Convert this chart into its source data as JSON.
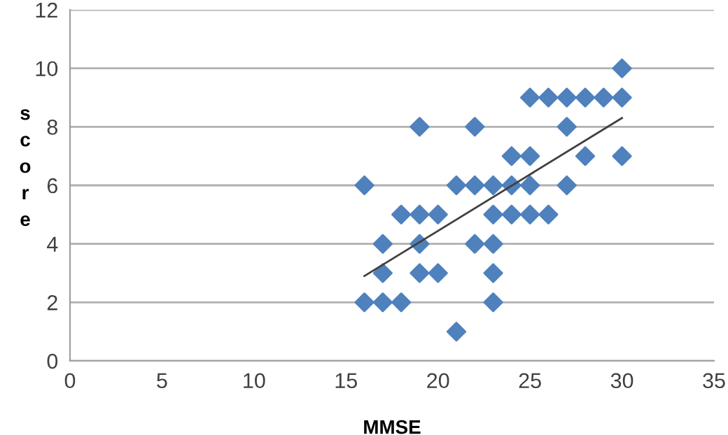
{
  "chart_data": {
    "type": "scatter",
    "xlabel": "MMSE",
    "ylabel": "score",
    "xlim": [
      0,
      35
    ],
    "xticks": [
      0,
      5,
      10,
      15,
      20,
      25,
      30,
      35
    ],
    "ylim": [
      0,
      12
    ],
    "yticks": [
      0,
      2,
      4,
      6,
      8,
      10,
      12
    ],
    "grid": "y",
    "legend": false,
    "series": [
      {
        "marker": "diamond",
        "color": "#4f81bd",
        "x": [
          30,
          25,
          26,
          27,
          28,
          29,
          30,
          19,
          22,
          27,
          24,
          25,
          28,
          30,
          16,
          21,
          22,
          23,
          24,
          25,
          27,
          18,
          19,
          20,
          23,
          24,
          25,
          26,
          17,
          19,
          22,
          23,
          17,
          19,
          20,
          23,
          16,
          17,
          18,
          23,
          21
        ],
        "values": [
          10,
          9,
          9,
          9,
          9,
          9,
          9,
          8,
          8,
          8,
          7,
          7,
          7,
          7,
          6,
          6,
          6,
          6,
          6,
          6,
          6,
          5,
          5,
          5,
          5,
          5,
          5,
          5,
          4,
          4,
          4,
          4,
          3,
          3,
          3,
          3,
          2,
          2,
          2,
          2,
          1
        ]
      },
      {
        "type": "line",
        "marker": "none",
        "color": "#404040",
        "x": [
          16,
          30
        ],
        "values": [
          2.9,
          8.3
        ]
      }
    ]
  }
}
